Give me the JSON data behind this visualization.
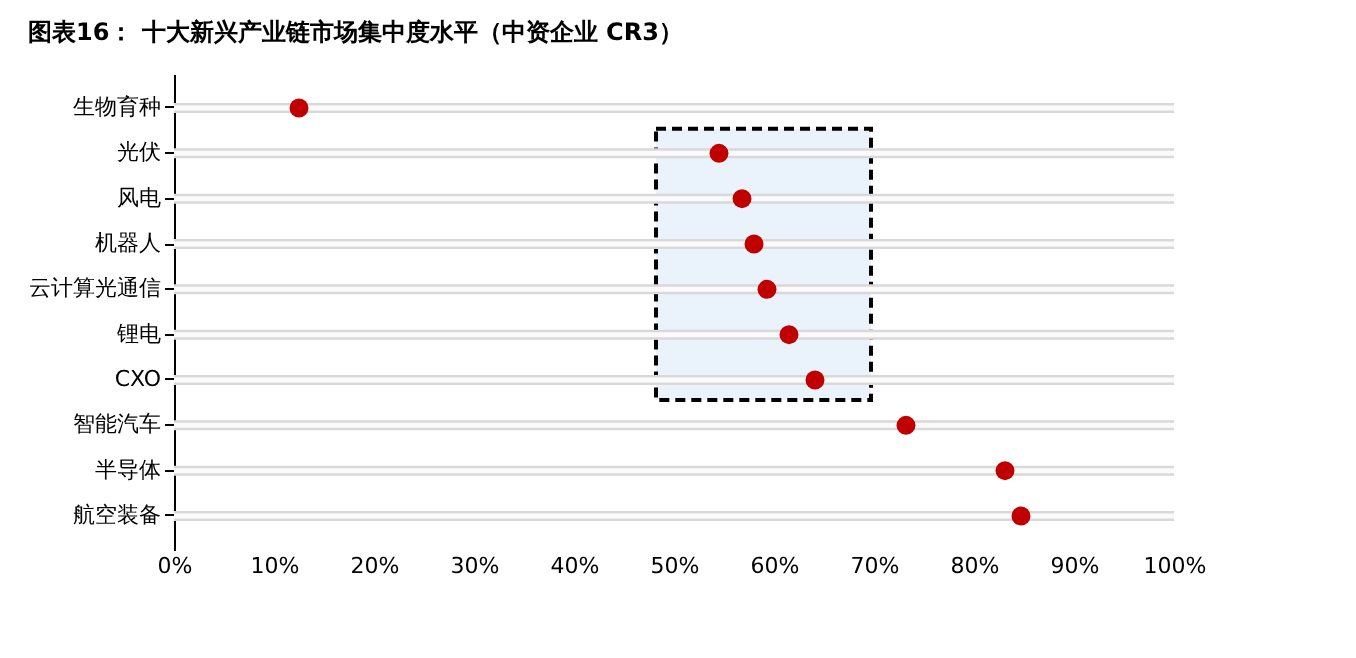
{
  "chart_data": {
    "type": "scatter",
    "orientation": "horizontal",
    "marker": "circle",
    "title": "图表16：  十大新兴产业链市场集中度水平（中资企业 CR3）",
    "categories": [
      "生物育种",
      "光伏",
      "风电",
      "机器人",
      "云计算光通信",
      "锂电",
      "CXO",
      "智能汽车",
      "半导体",
      "航空装备"
    ],
    "values": [
      12.5,
      54.5,
      56.8,
      58.0,
      59.3,
      61.5,
      64.1,
      73.2,
      83.1,
      84.7
    ],
    "color": "#c00000",
    "xlim": [
      0,
      100
    ],
    "xticks": [
      {
        "value": 0,
        "label": "0%"
      },
      {
        "value": 10,
        "label": "10%"
      },
      {
        "value": 20,
        "label": "20%"
      },
      {
        "value": 30,
        "label": "30%"
      },
      {
        "value": 40,
        "label": "40%"
      },
      {
        "value": 50,
        "label": "50%"
      },
      {
        "value": 60,
        "label": "60%"
      },
      {
        "value": 70,
        "label": "70%"
      },
      {
        "value": 80,
        "label": "80%"
      },
      {
        "value": 90,
        "label": "90%"
      },
      {
        "value": 100,
        "label": "100%"
      }
    ],
    "bands": [
      {
        "axis": "x",
        "from": 48.2,
        "to": 69.7,
        "color": "#eaf2fc"
      }
    ],
    "grid": "y"
  }
}
